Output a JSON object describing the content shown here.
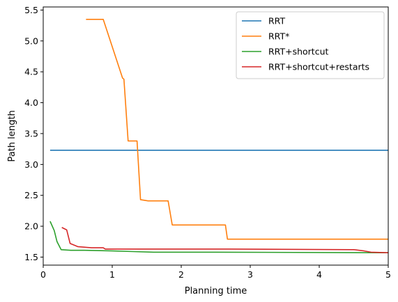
{
  "chart_data": {
    "type": "line",
    "xlabel": "Planning time",
    "ylabel": "Path length",
    "xlim": [
      0,
      5
    ],
    "ylim": [
      1.37,
      5.55
    ],
    "xticks": [
      "0",
      "1",
      "2",
      "3",
      "4",
      "5"
    ],
    "yticks": [
      "1.5",
      "2.0",
      "2.5",
      "3.0",
      "3.5",
      "4.0",
      "4.5",
      "5.0",
      "5.5"
    ],
    "grid": false,
    "legend_position": "top-right",
    "series": [
      {
        "name": "RRT",
        "color": "#1f77b4",
        "x": [
          0.1,
          5.0
        ],
        "y": [
          3.23,
          3.23
        ]
      },
      {
        "name": "RRT*",
        "color": "#ff7f0e",
        "x": [
          0.62,
          0.87,
          1.15,
          1.17,
          1.23,
          1.36,
          1.41,
          1.52,
          1.81,
          1.87,
          2.64,
          2.67,
          5.0
        ],
        "y": [
          5.35,
          5.35,
          4.4,
          4.38,
          3.38,
          3.38,
          2.43,
          2.41,
          2.41,
          2.02,
          2.02,
          1.79,
          1.79
        ]
      },
      {
        "name": "RRT+shortcut",
        "color": "#2ca02c",
        "x": [
          0.1,
          0.16,
          0.2,
          0.26,
          0.4,
          0.6,
          1.0,
          1.3,
          1.6,
          2.5,
          5.0
        ],
        "y": [
          2.08,
          1.93,
          1.75,
          1.62,
          1.61,
          1.61,
          1.6,
          1.59,
          1.58,
          1.58,
          1.57
        ]
      },
      {
        "name": "RRT+shortcut+restarts",
        "color": "#d62728",
        "x": [
          0.27,
          0.34,
          0.39,
          0.5,
          0.7,
          0.87,
          0.9,
          1.5,
          2.7,
          4.5,
          4.65,
          4.75,
          5.0
        ],
        "y": [
          1.98,
          1.94,
          1.72,
          1.67,
          1.65,
          1.65,
          1.63,
          1.63,
          1.63,
          1.62,
          1.6,
          1.58,
          1.57
        ]
      }
    ]
  }
}
